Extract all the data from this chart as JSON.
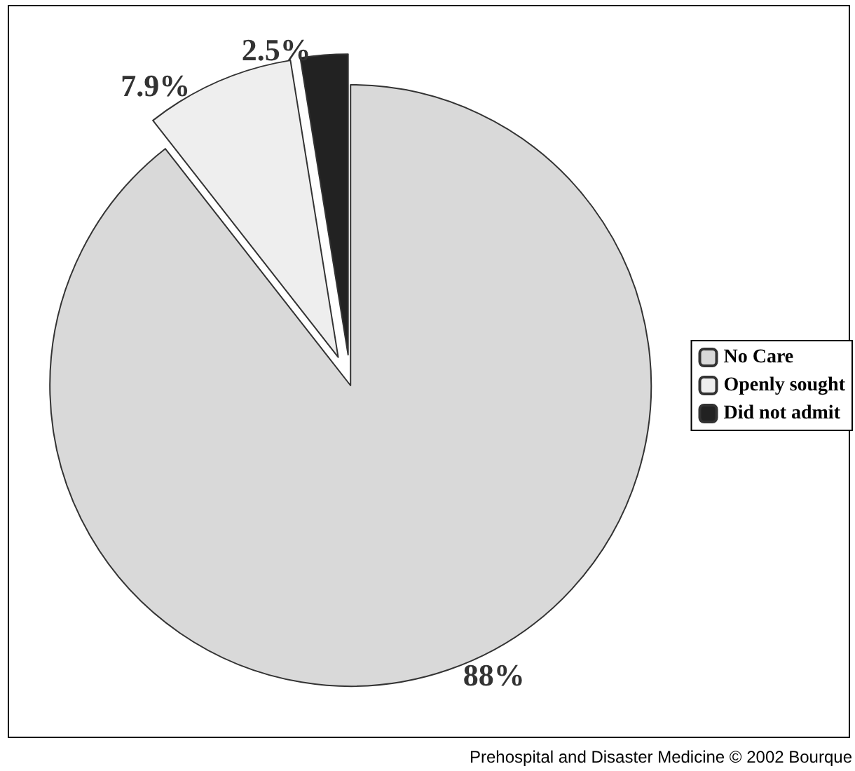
{
  "chart_data": {
    "type": "pie",
    "categories": [
      "No Care",
      "Openly sought",
      "Did not admit"
    ],
    "values": [
      88,
      7.9,
      2.5
    ],
    "colors": [
      "#d9d9d9",
      "#eeeeee",
      "#222222"
    ],
    "value_labels": [
      "88%",
      "7.9%",
      "2.5%"
    ],
    "legend": "right",
    "annotations": [
      "Prehospital and Disaster Medicine © 2002 Bourque"
    ]
  }
}
